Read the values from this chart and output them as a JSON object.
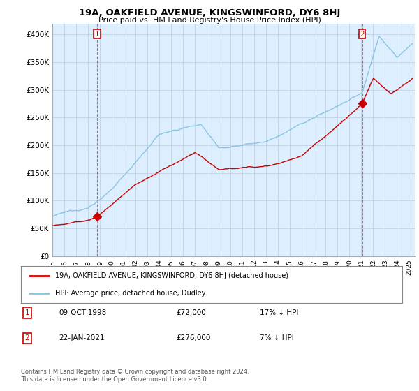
{
  "title": "19A, OAKFIELD AVENUE, KINGSWINFORD, DY6 8HJ",
  "subtitle": "Price paid vs. HM Land Registry's House Price Index (HPI)",
  "ylabel_ticks": [
    "£0",
    "£50K",
    "£100K",
    "£150K",
    "£200K",
    "£250K",
    "£300K",
    "£350K",
    "£400K"
  ],
  "ylabel_values": [
    0,
    50000,
    100000,
    150000,
    200000,
    250000,
    300000,
    350000,
    400000
  ],
  "ylim": [
    0,
    420000
  ],
  "xlim_start": 1995.0,
  "xlim_end": 2025.5,
  "hpi_color": "#89c4e1",
  "price_color": "#cc0000",
  "plot_bg_color": "#ddeeff",
  "transaction1_date": 1998.78,
  "transaction1_price": 72000,
  "transaction2_date": 2021.07,
  "transaction2_price": 276000,
  "legend_line1": "19A, OAKFIELD AVENUE, KINGSWINFORD, DY6 8HJ (detached house)",
  "legend_line2": "HPI: Average price, detached house, Dudley",
  "table_row1_num": "1",
  "table_row1_date": "09-OCT-1998",
  "table_row1_price": "£72,000",
  "table_row1_hpi": "17% ↓ HPI",
  "table_row2_num": "2",
  "table_row2_date": "22-JAN-2021",
  "table_row2_price": "£276,000",
  "table_row2_hpi": "7% ↓ HPI",
  "footer": "Contains HM Land Registry data © Crown copyright and database right 2024.\nThis data is licensed under the Open Government Licence v3.0.",
  "background_color": "#ffffff",
  "grid_color": "#bbccdd"
}
